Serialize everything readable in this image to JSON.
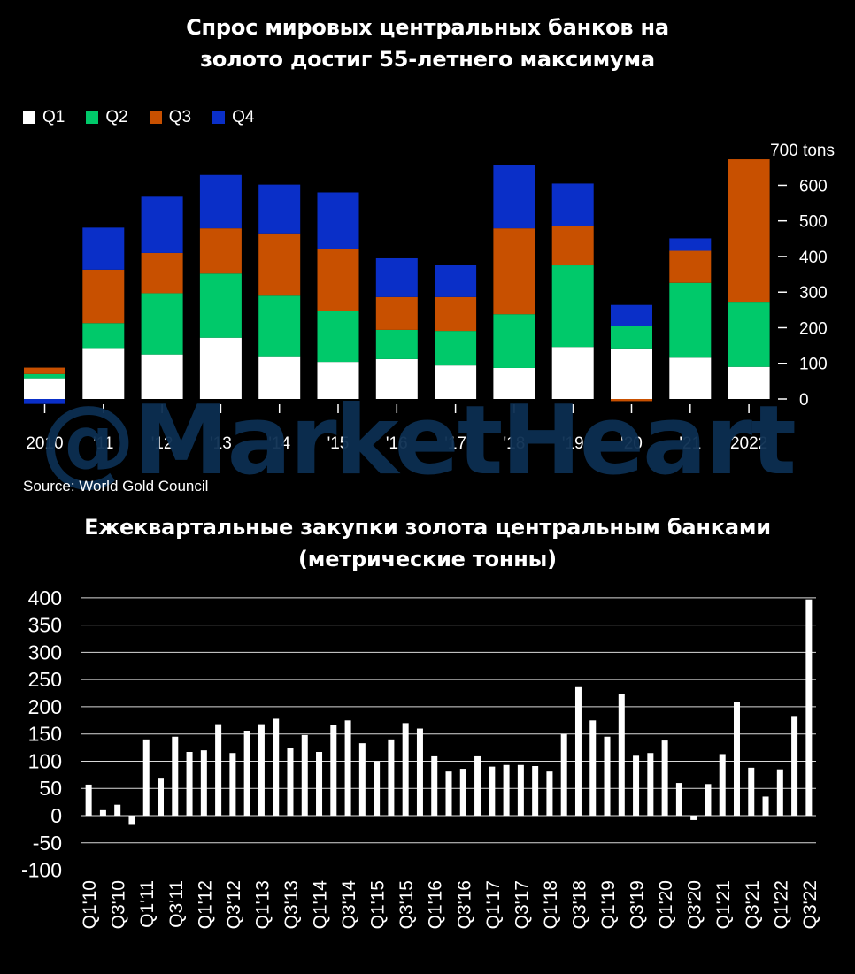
{
  "chart_data": [
    {
      "type": "bar",
      "stacked": true,
      "title": "Спрос мировых центральных банков на золото достиг 55-летнего максимума",
      "title_lines": [
        "Спрос мировых центральных банков на",
        "золото достиг 55-летнего максимума"
      ],
      "categories": [
        "2010",
        "'11",
        "'12",
        "'13",
        "'14",
        "'15",
        "'16",
        "'17",
        "'18",
        "'19",
        "'20",
        "'21",
        "2022"
      ],
      "series": [
        {
          "name": "Q1",
          "color": "#ffffff",
          "values": [
            58,
            143,
            125,
            172,
            120,
            104,
            112,
            94,
            87,
            146,
            142,
            116,
            90
          ]
        },
        {
          "name": "Q2",
          "color": "#00c96a",
          "values": [
            12,
            70,
            172,
            180,
            170,
            144,
            82,
            97,
            151,
            229,
            62,
            210,
            183
          ]
        },
        {
          "name": "Q3",
          "color": "#c85000",
          "values": [
            18,
            150,
            113,
            127,
            175,
            172,
            92,
            95,
            241,
            110,
            -6,
            90,
            400
          ]
        },
        {
          "name": "Q4",
          "color": "#0a2fc8",
          "values": [
            -14,
            118,
            158,
            150,
            137,
            160,
            109,
            91,
            177,
            120,
            60,
            35,
            0
          ]
        }
      ],
      "ylim": [
        0,
        700
      ],
      "yticks": [
        0,
        100,
        200,
        300,
        400,
        500,
        600
      ],
      "ytick_labels": [
        "0",
        "100",
        "200",
        "300",
        "400",
        "500",
        "600"
      ],
      "ytop_label": "700 tons",
      "legend": "top-left",
      "source": "Source: World Gold Council",
      "grid": false
    },
    {
      "type": "bar",
      "title": "Ежеквартальные закупки золота центральным банками (метрические тонны)",
      "title_lines": [
        "Ежеквартальные закупки золота центральным банками",
        "(метрические тонны)"
      ],
      "categories": [
        "Q1'10",
        "Q2'10",
        "Q3'10",
        "Q4'10",
        "Q1'11",
        "Q2'11",
        "Q3'11",
        "Q4'11",
        "Q1'12",
        "Q2'12",
        "Q3'12",
        "Q4'12",
        "Q1'13",
        "Q2'13",
        "Q3'13",
        "Q4'13",
        "Q1'14",
        "Q2'14",
        "Q3'14",
        "Q4'14",
        "Q1'15",
        "Q2'15",
        "Q3'15",
        "Q4'15",
        "Q1'16",
        "Q2'16",
        "Q3'16",
        "Q4'16",
        "Q1'17",
        "Q2'17",
        "Q3'17",
        "Q4'17",
        "Q1'18",
        "Q2'18",
        "Q3'18",
        "Q4'18",
        "Q1'19",
        "Q2'19",
        "Q3'19",
        "Q4'19",
        "Q1'20",
        "Q2'20",
        "Q3'20",
        "Q4'20",
        "Q1'21",
        "Q2'21",
        "Q3'21",
        "Q4'21",
        "Q1'22",
        "Q2'22",
        "Q3'22"
      ],
      "labeled_categories": [
        "Q1'10",
        "Q3'10",
        "Q1'11",
        "Q3'11",
        "Q1'12",
        "Q3'12",
        "Q1'13",
        "Q3'13",
        "Q1'14",
        "Q3'14",
        "Q1'15",
        "Q3'15",
        "Q1'16",
        "Q3'16",
        "Q1'17",
        "Q3'17",
        "Q1'18",
        "Q3'18",
        "Q1'19",
        "Q3'19",
        "Q1'20",
        "Q3'20",
        "Q1'21",
        "Q3'21",
        "Q1'22",
        "Q3'22"
      ],
      "values": [
        57,
        10,
        20,
        -17,
        140,
        68,
        145,
        117,
        120,
        168,
        115,
        156,
        168,
        178,
        125,
        148,
        117,
        166,
        175,
        133,
        100,
        140,
        170,
        160,
        109,
        81,
        86,
        109,
        90,
        93,
        93,
        91,
        81,
        150,
        236,
        175,
        145,
        224,
        110,
        115,
        138,
        60,
        -8,
        58,
        113,
        208,
        88,
        35,
        85,
        183,
        397
      ],
      "ylim": [
        -100,
        400
      ],
      "yticks": [
        -100,
        -50,
        0,
        50,
        100,
        150,
        200,
        250,
        300,
        350,
        400
      ],
      "ytick_labels": [
        "-100",
        "-50",
        "0",
        "50",
        "100",
        "150",
        "200",
        "250",
        "300",
        "350",
        "400"
      ],
      "grid": true
    }
  ],
  "watermark": "@MarketHeart"
}
